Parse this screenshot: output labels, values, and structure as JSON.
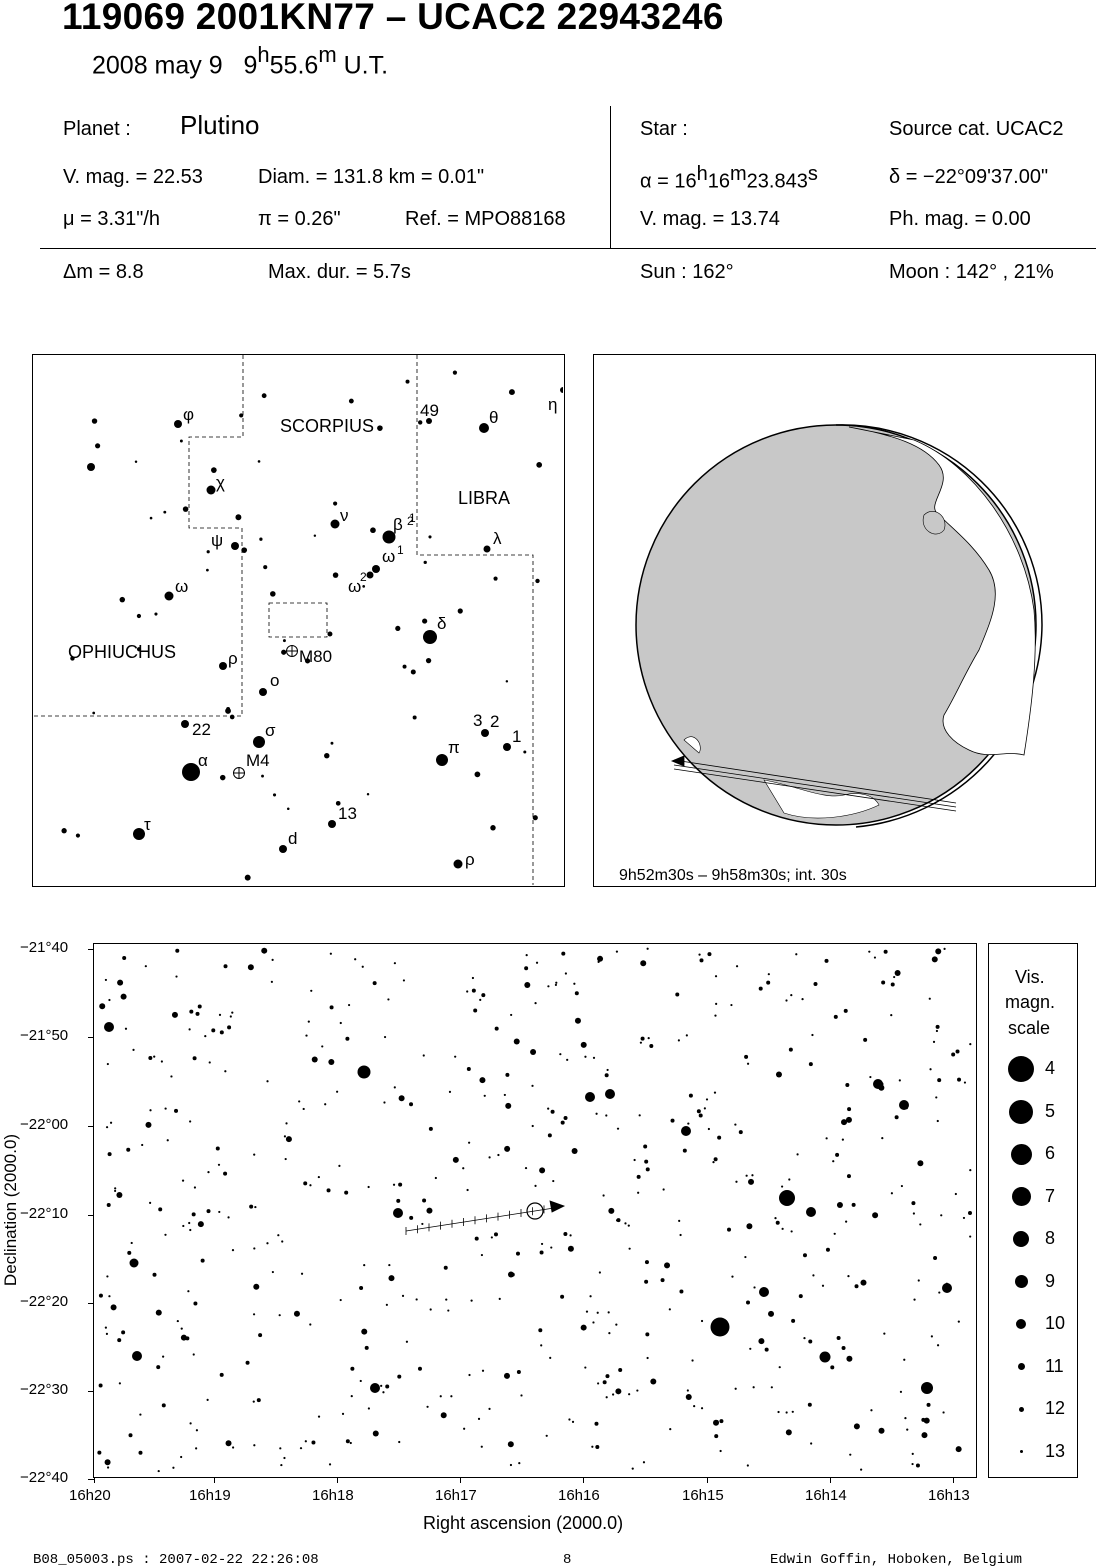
{
  "header": {
    "title": "119069 2001KN77  –  UCAC2 22943246",
    "date": "2008 may  9",
    "time_h": "9",
    "time_hsup": "h",
    "time_m": "55.6",
    "time_msup": "m",
    "time_ut": "U.T."
  },
  "planet": {
    "label": "Planet :",
    "name": "Plutino",
    "vmag": "V. mag. = 22.53",
    "diam": "Diam. = 131.8 km = 0.01\"",
    "mu": "μ =  3.31\"/h",
    "pi": "π =  0.26\"",
    "ref": "Ref. = MPO88168"
  },
  "star": {
    "label": "Star :",
    "source": "Source cat.  UCAC2",
    "alpha_pre": "α = 16",
    "alpha_h": "h",
    "alpha_mid": "16",
    "alpha_m": "m",
    "alpha_sec": "23.843",
    "alpha_s": "s",
    "delta": "δ = −22°09'37.00\"",
    "vmag": "V. mag. = 13.74",
    "phmag": "Ph. mag. =  0.00"
  },
  "event": {
    "dm": "Δm = 8.8",
    "maxdur": "Max. dur. = 5.7s",
    "sun": "Sun : 162°",
    "moon": "Moon : 142° , 21%"
  },
  "finder": {
    "constellations": [
      "SCORPIUS",
      "LIBRA",
      "OPHIUCHUS"
    ],
    "labels": [
      {
        "t": "φ"
      },
      {
        "t": "χ"
      },
      {
        "t": "ψ"
      },
      {
        "t": "ω"
      },
      {
        "t": "ρ"
      },
      {
        "t": "ν"
      },
      {
        "t": "β"
      },
      {
        "t": "2"
      },
      {
        "t": "1"
      },
      {
        "t": "ω"
      },
      {
        "t": "1"
      },
      {
        "t": "ω"
      },
      {
        "t": "2"
      },
      {
        "t": "δ"
      },
      {
        "t": "M80"
      },
      {
        "t": "o"
      },
      {
        "t": "σ"
      },
      {
        "t": "M4"
      },
      {
        "t": "α"
      },
      {
        "t": "22"
      },
      {
        "t": "τ"
      },
      {
        "t": "d"
      },
      {
        "t": "13"
      },
      {
        "t": "π"
      },
      {
        "t": "3"
      },
      {
        "t": "2"
      },
      {
        "t": "1"
      },
      {
        "t": "ρ"
      },
      {
        "t": "49"
      },
      {
        "t": "θ"
      },
      {
        "t": "η"
      },
      {
        "t": "λ"
      }
    ]
  },
  "globe": {
    "caption": "9h52m30s –  9h58m30s; int. 30s"
  },
  "starchart": {
    "dec_ticks": [
      "−21°40",
      "−21°50",
      "−22°00",
      "−22°10",
      "−22°20",
      "−22°30",
      "−22°40"
    ],
    "ra_ticks": [
      "16h20",
      "16h19",
      "16h18",
      "16h17",
      "16h16",
      "16h15",
      "16h14",
      "16h13"
    ],
    "xlabel": "Right ascension (2000.0)",
    "ylabel": "Declination (2000.0)"
  },
  "scale": {
    "title1": "Vis.",
    "title2": "magn.",
    "title3": "scale",
    "mags": [
      "4",
      "5",
      "6",
      "7",
      "8",
      "9",
      "10",
      "11",
      "12",
      "13"
    ]
  },
  "footer": {
    "left": "B08_05003.ps : 2007-02-22 22:26:08",
    "page": "8",
    "right": "Edwin Goffin, Hoboken, Belgium"
  }
}
